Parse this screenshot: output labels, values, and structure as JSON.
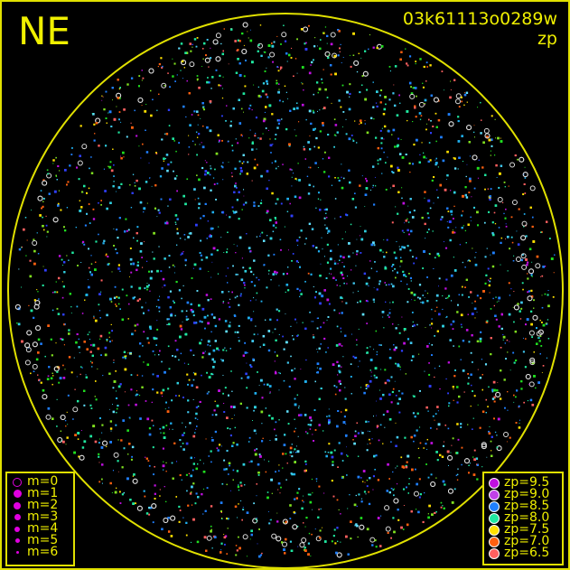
{
  "header": {
    "direction": "NE",
    "frame_id": "03k61113o0289w",
    "mode": "zp"
  },
  "chart_data": {
    "type": "scatter",
    "title": "",
    "description_colors": {
      "circle": "#e0e000",
      "frame": "#e0e000"
    },
    "magnitude_legend": {
      "items": [
        {
          "label": "m=0",
          "hollow": true
        },
        {
          "label": "m=1",
          "hollow": false
        },
        {
          "label": "m=2",
          "hollow": false
        },
        {
          "label": "m=3",
          "hollow": false
        },
        {
          "label": "m=4",
          "hollow": false
        },
        {
          "label": "m=5",
          "hollow": false
        },
        {
          "label": "m=6",
          "hollow": false
        }
      ],
      "color": "#e000e0"
    },
    "zp_legend": {
      "items": [
        {
          "label": "zp=9.5",
          "color": "#c010e0"
        },
        {
          "label": "zp=9.0",
          "color": "#c040e8"
        },
        {
          "label": "zp=8.5",
          "color": "#2080ff"
        },
        {
          "label": "zp=8.0",
          "color": "#20e8a0"
        },
        {
          "label": "zp=7.5",
          "color": "#ffe000"
        },
        {
          "label": "zp=7.0",
          "color": "#ff6010"
        },
        {
          "label": "zp=6.5",
          "color": "#ff6060"
        }
      ]
    },
    "legend_placement": [
      "bottom-left",
      "bottom-right"
    ]
  }
}
